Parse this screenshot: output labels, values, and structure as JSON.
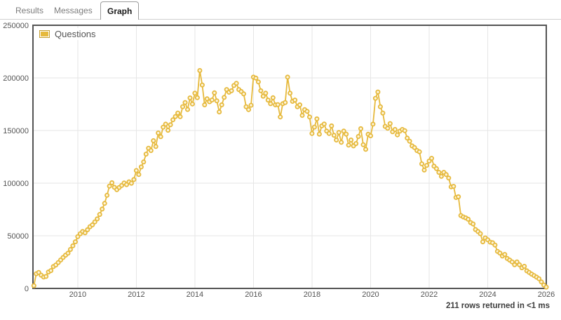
{
  "tabs": {
    "items": [
      {
        "label": "Results",
        "active": false
      },
      {
        "label": "Messages",
        "active": false
      },
      {
        "label": "Graph",
        "active": true
      }
    ]
  },
  "footer": {
    "status": "211 rows returned in <1 ms"
  },
  "colors": {
    "series": "#E6B93C",
    "point_fill": "#FDF5DC",
    "grid": "#e6e6e6",
    "plot_border": "#545454",
    "tick_text": "#545454"
  },
  "chart_data": {
    "type": "line",
    "title": "",
    "xlabel": "",
    "ylabel": "",
    "grid": true,
    "legend": {
      "position": "top-left",
      "label": "Questions"
    },
    "x_ticks": [
      2010,
      2012,
      2014,
      2016,
      2018,
      2020,
      2022,
      2024,
      2026
    ],
    "y_ticks": [
      0,
      50000,
      100000,
      150000,
      200000,
      250000
    ],
    "xlim": [
      2008.47,
      2026.0
    ],
    "ylim": [
      0,
      250000
    ],
    "series": [
      {
        "name": "Questions",
        "x_start": "2008-07",
        "interval": "monthly",
        "values": [
          2600,
          13900,
          15200,
          12600,
          10800,
          11400,
          15600,
          16900,
          20700,
          22300,
          24600,
          27000,
          29400,
          31600,
          33500,
          37000,
          40500,
          44300,
          49200,
          51900,
          54100,
          52800,
          55700,
          58600,
          60400,
          63200,
          66100,
          70300,
          75400,
          80800,
          88500,
          97200,
          100400,
          96100,
          93800,
          95900,
          97800,
          100200,
          98600,
          101300,
          99900,
          103400,
          112000,
          108200,
          115400,
          120100,
          127600,
          133200,
          131000,
          140300,
          134800,
          147700,
          144100,
          153200,
          156100,
          150300,
          155500,
          160200,
          163300,
          166600,
          163100,
          172600,
          176600,
          170000,
          181000,
          175200,
          185500,
          181200,
          207000,
          193300,
          174400,
          180100,
          177300,
          179000,
          185800,
          178200,
          167700,
          174400,
          181500,
          188900,
          186400,
          187800,
          192700,
          194900,
          188900,
          187100,
          184800,
          172600,
          169900,
          174000,
          200700,
          199800,
          196200,
          187800,
          182600,
          185500,
          178900,
          175500,
          181100,
          174400,
          174600,
          162900,
          175500,
          176600,
          200700,
          185500,
          177700,
          178900,
          172600,
          174400,
          164400,
          169900,
          168200,
          162900,
          147200,
          153300,
          161100,
          146600,
          154400,
          156200,
          149500,
          147200,
          154400,
          145500,
          141000,
          148100,
          138800,
          149500,
          146600,
          136100,
          141000,
          135400,
          137600,
          144300,
          151700,
          136500,
          132100,
          146500,
          145000,
          156100,
          180600,
          186600,
          172600,
          166600,
          153900,
          152100,
          156600,
          148800,
          151000,
          145900,
          149400,
          151000,
          149900,
          142800,
          139900,
          135400,
          133800,
          131000,
          129800,
          118300,
          112500,
          116900,
          121000,
          123600,
          116100,
          113800,
          110300,
          106500,
          110300,
          108100,
          104900,
          96500,
          96900,
          86400,
          87100,
          69300,
          67900,
          67000,
          65700,
          62600,
          61300,
          55900,
          54100,
          52000,
          44300,
          48000,
          46200,
          44000,
          43400,
          41200,
          35200,
          33600,
          30700,
          32300,
          28500,
          26900,
          25200,
          22500,
          25200,
          22500,
          19600,
          21000,
          16700,
          15200,
          13600,
          12200,
          10700,
          9200,
          6200,
          3300,
          1300
        ]
      }
    ]
  }
}
